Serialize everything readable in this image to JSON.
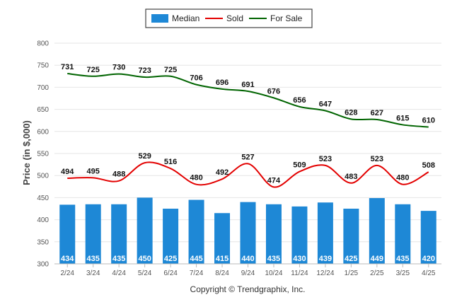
{
  "chart_data": {
    "type": "bar",
    "categories": [
      "2/24",
      "3/24",
      "4/24",
      "5/24",
      "6/24",
      "7/24",
      "8/24",
      "9/24",
      "10/24",
      "11/24",
      "12/24",
      "1/25",
      "2/25",
      "3/25",
      "4/25"
    ],
    "series": [
      {
        "name": "Median",
        "kind": "bar",
        "color": "#1e88d6",
        "values": [
          434,
          435,
          435,
          450,
          425,
          445,
          415,
          440,
          435,
          430,
          439,
          425,
          449,
          435,
          420
        ]
      },
      {
        "name": "Sold",
        "kind": "line",
        "color": "#e30000",
        "values": [
          494,
          495,
          488,
          529,
          516,
          480,
          492,
          527,
          474,
          509,
          523,
          483,
          523,
          480,
          508
        ]
      },
      {
        "name": "For Sale",
        "kind": "line",
        "color": "#006400",
        "values": [
          731,
          725,
          730,
          723,
          725,
          706,
          696,
          691,
          676,
          656,
          647,
          628,
          627,
          615,
          610
        ]
      }
    ],
    "ylabel": "Price (in $,000)",
    "ylim": [
      300,
      800
    ],
    "yticks": [
      300,
      350,
      400,
      450,
      500,
      550,
      600,
      650,
      700,
      750,
      800
    ],
    "grid": true,
    "legend_position": "top-center",
    "credit": "Copyright © Trendgraphix, Inc."
  }
}
